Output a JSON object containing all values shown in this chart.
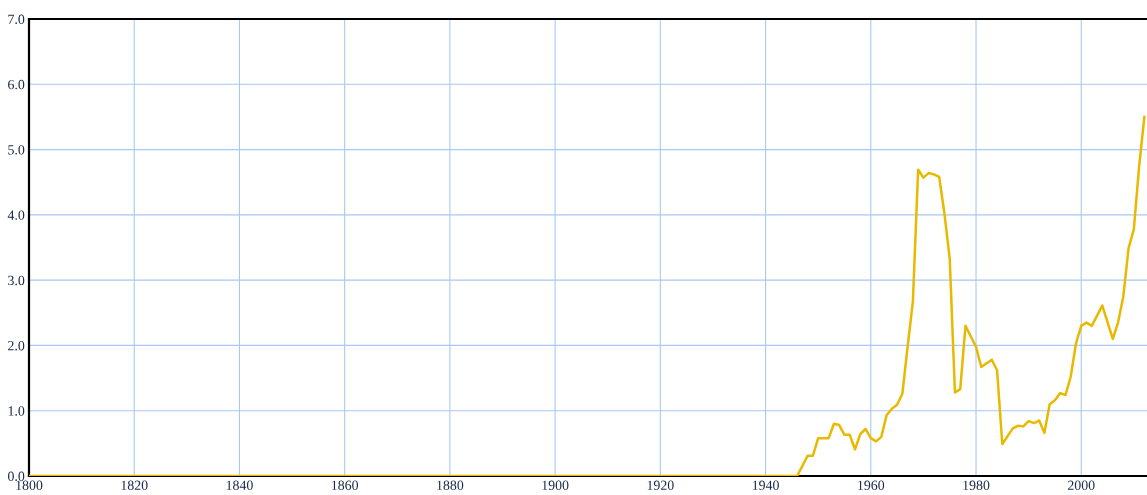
{
  "chart_data": {
    "type": "line",
    "x": [
      1800,
      1946,
      1948,
      1949,
      1950,
      1952,
      1953,
      1954,
      1955,
      1956,
      1957,
      1958,
      1959,
      1960,
      1961,
      1962,
      1963,
      1964,
      1965,
      1966,
      1967,
      1968,
      1969,
      1970,
      1971,
      1972,
      1973,
      1974,
      1975,
      1976,
      1977,
      1978,
      1980,
      1981,
      1983,
      1984,
      1985,
      1987,
      1988,
      1989,
      1990,
      1991,
      1992,
      1993,
      1994,
      1995,
      1996,
      1997,
      1998,
      1999,
      2000,
      2001,
      2002,
      2004,
      2006,
      2007,
      2008,
      2009,
      2010,
      2011,
      2012
    ],
    "series": [
      {
        "color": "#e8b900",
        "values": [
          0,
          0,
          0.31,
          0.31,
          0.58,
          0.58,
          0.8,
          0.78,
          0.63,
          0.63,
          0.41,
          0.64,
          0.72,
          0.58,
          0.53,
          0.6,
          0.93,
          1.03,
          1.09,
          1.26,
          1.98,
          2.67,
          4.69,
          4.57,
          4.64,
          4.62,
          4.58,
          4.02,
          3.33,
          1.28,
          1.33,
          2.3,
          1.98,
          1.67,
          1.78,
          1.62,
          0.49,
          0.73,
          0.77,
          0.76,
          0.84,
          0.81,
          0.85,
          0.66,
          1.1,
          1.16,
          1.27,
          1.24,
          1.52,
          2.03,
          2.3,
          2.35,
          2.3,
          2.61,
          2.1,
          2.35,
          2.75,
          3.49,
          3.78,
          4.74,
          5.5
        ]
      }
    ],
    "xlim": [
      1800,
      2012.5
    ],
    "ylim": [
      0,
      7
    ],
    "xticks": [
      1800,
      1820,
      1840,
      1860,
      1880,
      1900,
      1920,
      1940,
      1960,
      1980,
      2000
    ],
    "yticks": [
      {
        "value": 0,
        "label": "0.0"
      },
      {
        "value": 1,
        "label": "1.0"
      },
      {
        "value": 2,
        "label": "2.0"
      },
      {
        "value": 3,
        "label": "3.0"
      },
      {
        "value": 4,
        "label": "4.0"
      },
      {
        "value": 5,
        "label": "5.0"
      },
      {
        "value": 6,
        "label": "6.0"
      },
      {
        "value": 7,
        "label": "7.0"
      }
    ],
    "grid": true,
    "marker": "none",
    "line_style": "solid",
    "legend": false
  }
}
